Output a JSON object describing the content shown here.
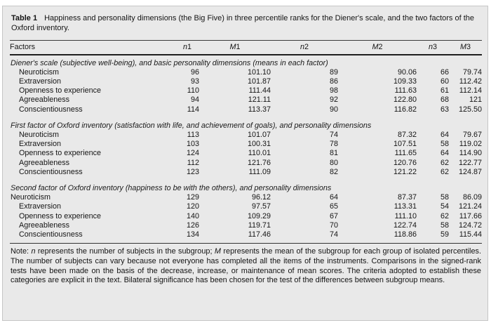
{
  "meta": {
    "label": "Table 1",
    "caption": "Happiness and personality dimensions (the Big Five) in three percentile ranks for the Diener's scale, and the two factors of the Oxford inventory."
  },
  "columns": [
    "Factors",
    "n1",
    "M1",
    "n2",
    "M2",
    "n3",
    "M3"
  ],
  "sections": [
    {
      "header": "Diener's scale (subjective well-being), and basic personality dimensions (means in each factor)",
      "rows": [
        {
          "factor": "Neuroticism",
          "indent": true,
          "values": [
            "96",
            "101.10",
            "89",
            "90.06",
            "66",
            "79.74"
          ]
        },
        {
          "factor": "Extraversion",
          "indent": true,
          "values": [
            "93",
            "101.87",
            "86",
            "109.33",
            "60",
            "112.42"
          ]
        },
        {
          "factor": "Openness to experience",
          "indent": true,
          "values": [
            "110",
            "111.44",
            "98",
            "111.63",
            "61",
            "112.14"
          ]
        },
        {
          "factor": "Agreeableness",
          "indent": true,
          "values": [
            "94",
            "121.11",
            "92",
            "122.80",
            "68",
            "121"
          ]
        },
        {
          "factor": "Conscientiousness",
          "indent": true,
          "values": [
            "114",
            "113.37",
            "90",
            "116.82",
            "63",
            "125.50"
          ]
        }
      ]
    },
    {
      "header": "First factor of Oxford inventory (satisfaction with life, and achievement of goals), and personality dimensions",
      "rows": [
        {
          "factor": "Neuroticism",
          "indent": true,
          "values": [
            "113",
            "101.07",
            "74",
            "87.32",
            "64",
            "79.67"
          ]
        },
        {
          "factor": "Extraversion",
          "indent": true,
          "values": [
            "103",
            "100.31",
            "78",
            "107.51",
            "58",
            "119.02"
          ]
        },
        {
          "factor": "Openness to experience",
          "indent": true,
          "values": [
            "124",
            "110.01",
            "81",
            "111.65",
            "64",
            "114.90"
          ]
        },
        {
          "factor": "Agreeableness",
          "indent": true,
          "values": [
            "112",
            "121.76",
            "80",
            "120.76",
            "62",
            "122.77"
          ]
        },
        {
          "factor": "Conscientiousness",
          "indent": true,
          "values": [
            "123",
            "111.09",
            "82",
            "121.22",
            "62",
            "124.87"
          ]
        }
      ]
    },
    {
      "header": "Second factor of Oxford inventory (happiness to be with the others), and personality dimensions",
      "rows": [
        {
          "factor": "Neuroticism",
          "indent": false,
          "values": [
            "129",
            "96.12",
            "64",
            "87.37",
            "58",
            "86.09"
          ]
        },
        {
          "factor": "Extraversion",
          "indent": true,
          "values": [
            "120",
            "97.57",
            "65",
            "113.31",
            "54",
            "121.24"
          ]
        },
        {
          "factor": "Openness to experience",
          "indent": true,
          "values": [
            "140",
            "109.29",
            "67",
            "111.10",
            "62",
            "117.66"
          ]
        },
        {
          "factor": "Agreeableness",
          "indent": true,
          "values": [
            "126",
            "119.71",
            "70",
            "122.74",
            "58",
            "124.72"
          ]
        },
        {
          "factor": "Conscientiousness",
          "indent": true,
          "values": [
            "134",
            "117.46",
            "74",
            "118.86",
            "59",
            "115.44"
          ]
        }
      ]
    }
  ],
  "note": "Note: n represents the number of subjects in the subgroup; M represents the mean of the subgroup for each group of isolated percentiles. The number of subjects can vary because not everyone has completed all the items of the instruments. Comparisons in the signed-rank tests have been made on the basis of the decrease, increase, or maintenance of mean scores. The criteria adopted to establish these categories are explicit in the text. Bilateral significance has been chosen for the test of the differences between subgroup means.",
  "colors": {
    "panel_bg": "#e9e9e9",
    "panel_border": "#c6c6c6",
    "rule_dark": "#1f1f1f",
    "text": "#151515"
  }
}
